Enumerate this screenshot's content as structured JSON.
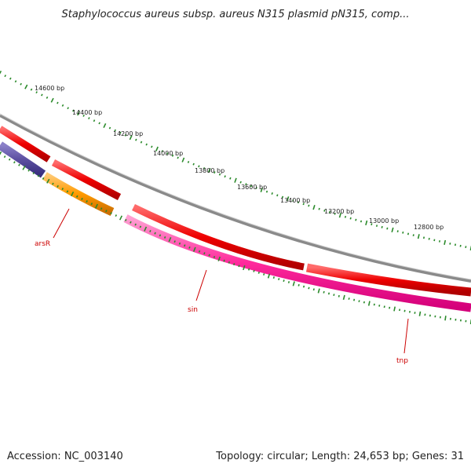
{
  "header": {
    "title": "Staphylococcus aureus subsp. aureus N315 plasmid pN315, comp..."
  },
  "footer": {
    "accession": "Accession: NC_003140",
    "summary": "Topology: circular; Length: 24,653 bp; Genes: 31"
  },
  "colors": {
    "backbone": "#8a8a8a",
    "forward_gene": "#ee0000",
    "tnp_gene": "#ee0000",
    "sin_gene": "#ff2a9c",
    "arsR_gene": "#ff9a00",
    "purple_gene": "#5b4fa0",
    "tick": "#2a8a2a",
    "gene_label": "#cc0000",
    "position_label": "#222222"
  },
  "scale": {
    "labels": [
      "14600 bp",
      "14400 bp",
      "14200 bp",
      "14000 bp",
      "13800 bp",
      "13600 bp",
      "13400 bp",
      "13200 bp",
      "13000 bp",
      "12800 bp"
    ]
  },
  "genes": [
    {
      "name": "arsR",
      "color": "#ff9a00"
    },
    {
      "name": "sin",
      "color": "#ff2a9c"
    },
    {
      "name": "tnp",
      "color": "#ee0000"
    }
  ]
}
